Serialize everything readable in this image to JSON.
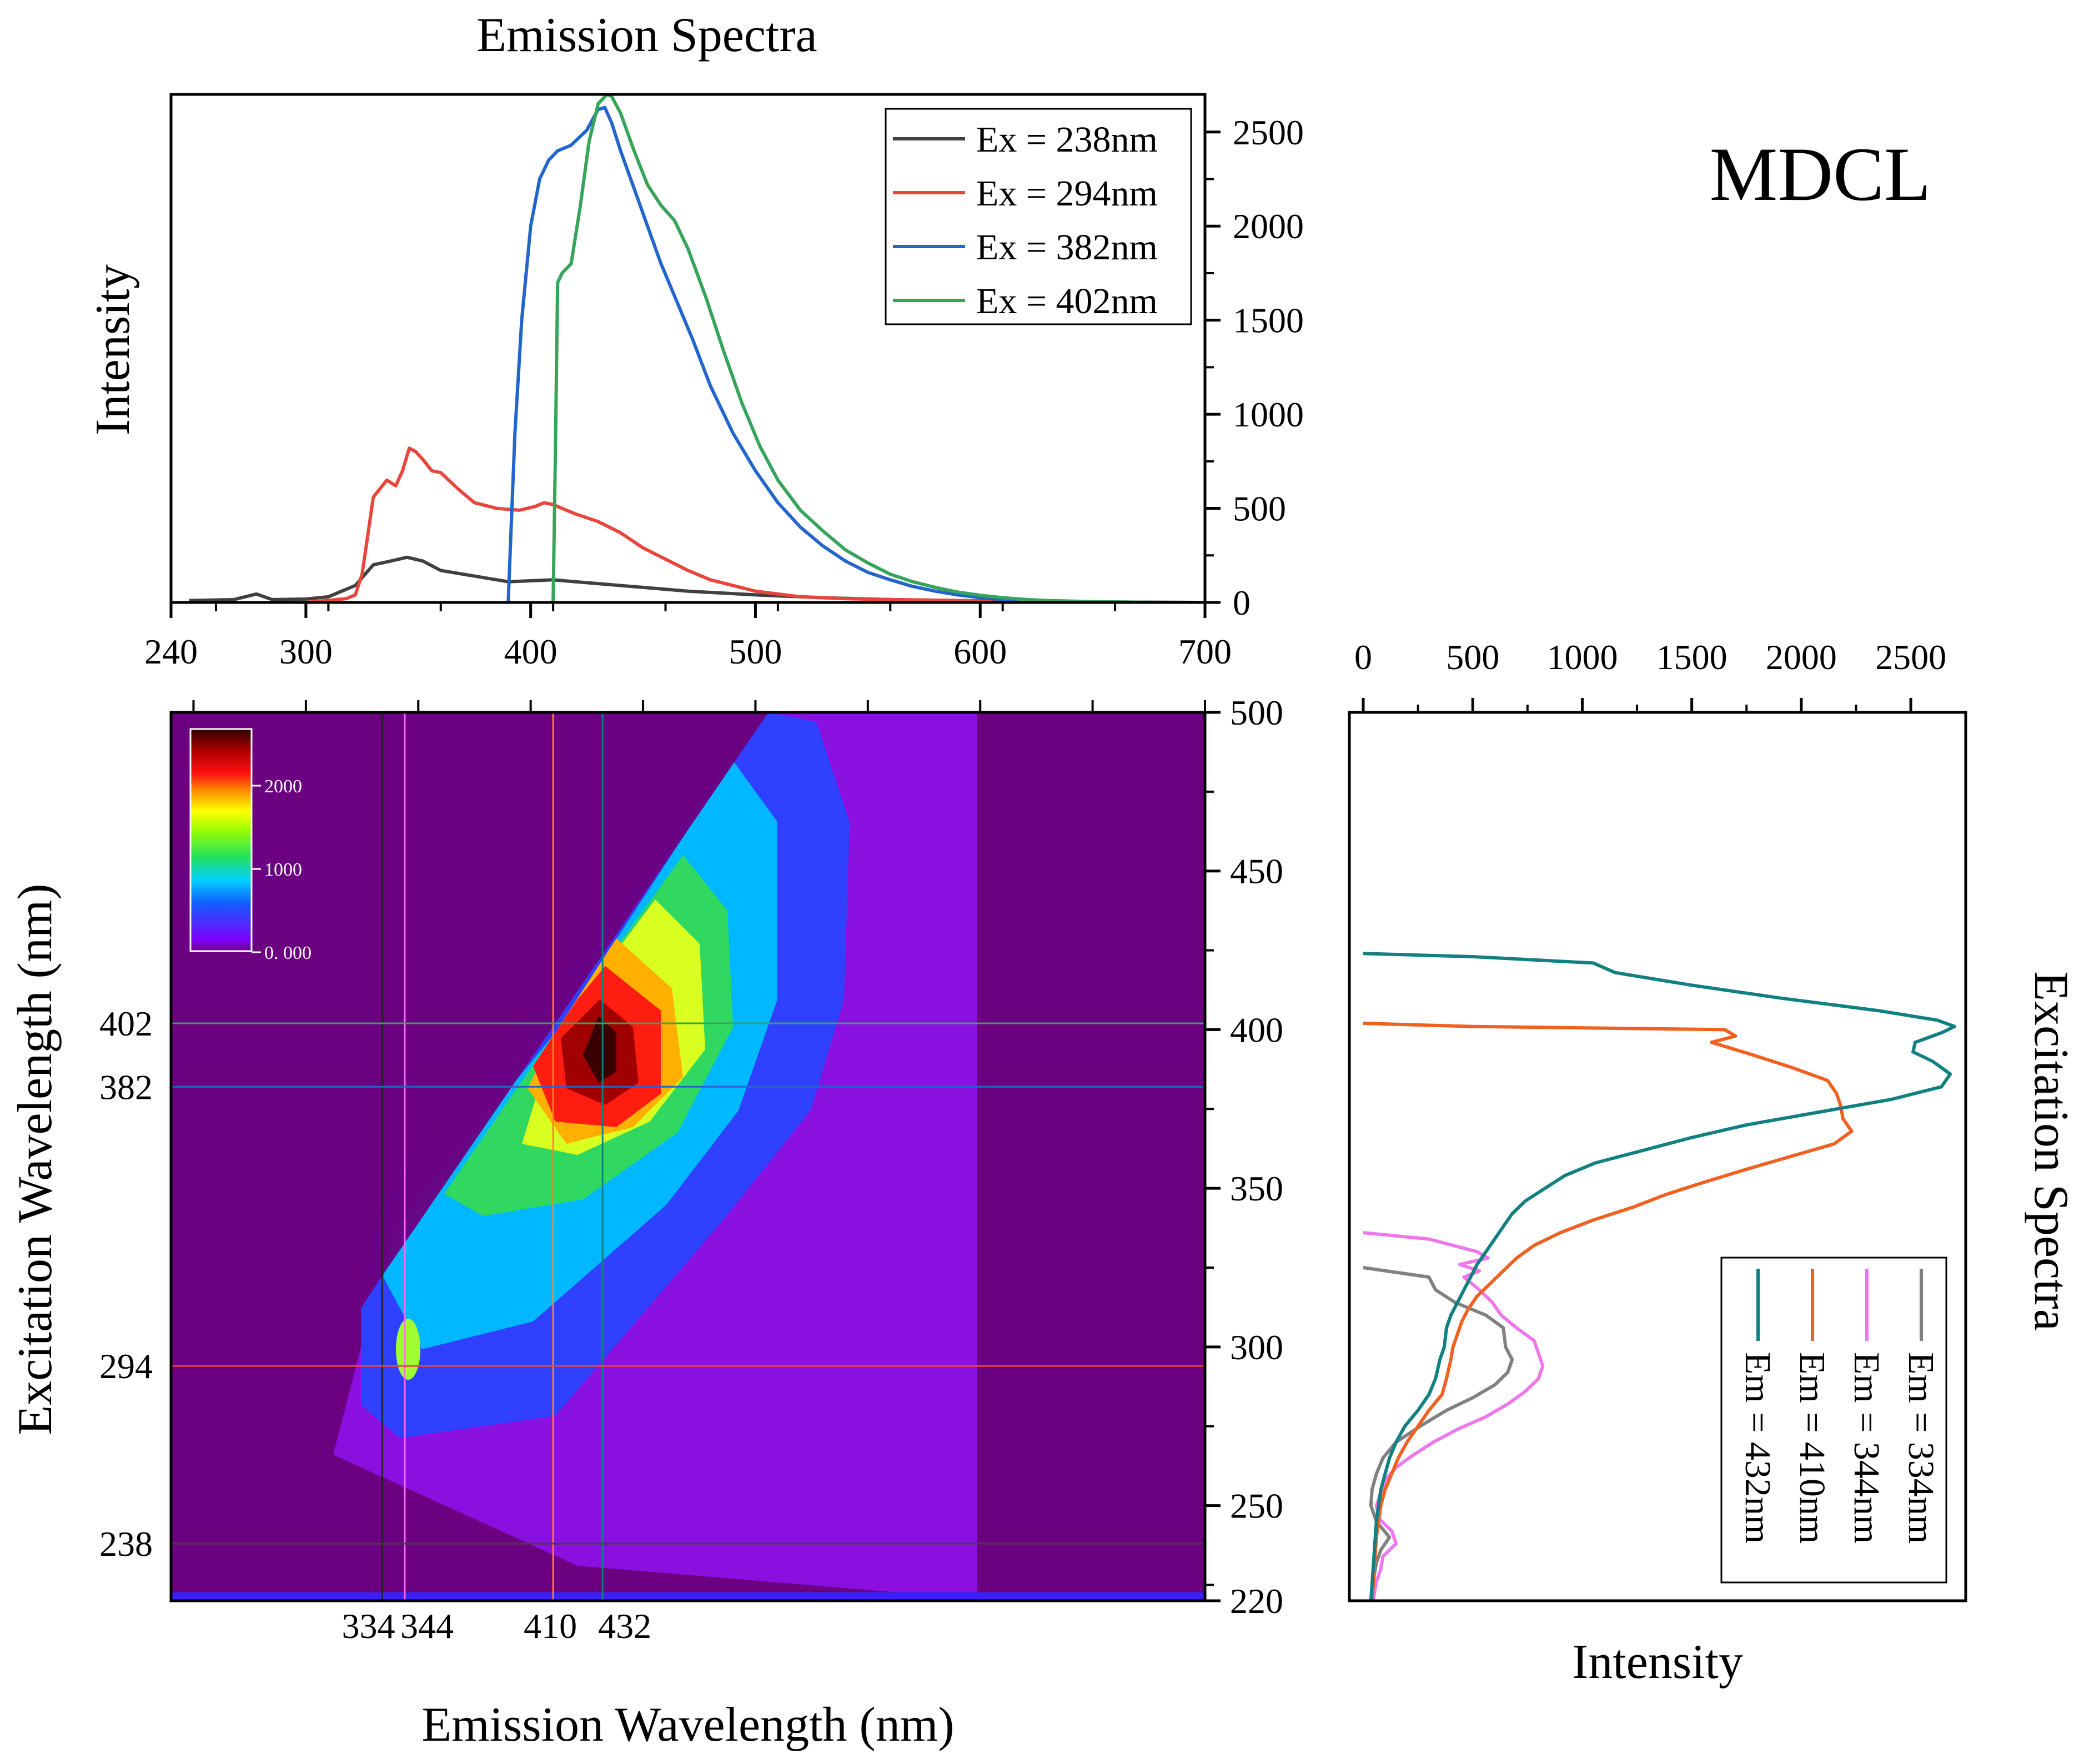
{
  "top_label": "MDCL",
  "chart_data": [
    {
      "type": "line",
      "panel": "emission",
      "title": "Emission Spectra",
      "xlabel": "",
      "ylabel": "Intensity",
      "xlim": [
        240,
        700
      ],
      "ylim": [
        0,
        2700
      ],
      "xticks": [
        240,
        300,
        400,
        500,
        600,
        700
      ],
      "yticks": [
        0,
        500,
        1000,
        1500,
        2000,
        2500
      ],
      "legend_position": "top-right",
      "series": [
        {
          "name": "Ex = 238nm",
          "color": "#404040",
          "x": [
            248,
            268,
            278,
            285,
            300,
            310,
            322,
            330,
            336,
            345,
            352,
            360,
            375,
            390,
            410,
            430,
            450,
            470,
            500,
            530,
            560,
            600,
            650,
            700
          ],
          "y": [
            10,
            15,
            45,
            15,
            18,
            30,
            90,
            200,
            215,
            240,
            220,
            170,
            140,
            110,
            120,
            100,
            80,
            60,
            40,
            25,
            15,
            8,
            3,
            0
          ]
        },
        {
          "name": "Ex = 294nm",
          "color": "#e8463c",
          "x": [
            300,
            318,
            322,
            325,
            330,
            336,
            340,
            343,
            346,
            349,
            352,
            356,
            360,
            368,
            375,
            385,
            395,
            402,
            406,
            410,
            414,
            420,
            430,
            440,
            450,
            460,
            470,
            480,
            500,
            520,
            540,
            560,
            580,
            600,
            620,
            650
          ],
          "y": [
            0,
            20,
            40,
            150,
            560,
            650,
            620,
            700,
            820,
            800,
            760,
            700,
            690,
            600,
            530,
            500,
            490,
            510,
            530,
            520,
            500,
            470,
            430,
            370,
            290,
            230,
            170,
            120,
            60,
            30,
            20,
            15,
            12,
            8,
            5,
            0
          ]
        },
        {
          "name": "Ex = 382nm",
          "color": "#2266cc",
          "x": [
            390,
            391,
            393,
            396,
            400,
            404,
            408,
            412,
            418,
            425,
            430,
            433,
            436,
            440,
            446,
            452,
            458,
            465,
            472,
            480,
            490,
            500,
            510,
            520,
            530,
            540,
            550,
            560,
            570,
            580,
            590,
            600,
            610,
            620,
            630,
            640
          ],
          "y": [
            0,
            300,
            900,
            1500,
            2000,
            2250,
            2350,
            2400,
            2430,
            2510,
            2620,
            2630,
            2550,
            2400,
            2200,
            2000,
            1800,
            1600,
            1400,
            1150,
            900,
            700,
            530,
            400,
            300,
            220,
            160,
            120,
            85,
            60,
            40,
            25,
            15,
            8,
            4,
            0
          ]
        },
        {
          "name": "Ex = 402nm",
          "color": "#36a45a",
          "x": [
            410,
            411,
            412,
            414,
            418,
            422,
            426,
            430,
            434,
            436,
            440,
            446,
            452,
            458,
            464,
            470,
            478,
            486,
            494,
            502,
            510,
            520,
            530,
            540,
            550,
            560,
            570,
            580,
            590,
            600,
            610,
            620,
            630,
            650,
            680
          ],
          "y": [
            0,
            800,
            1700,
            1750,
            1800,
            2100,
            2450,
            2650,
            2700,
            2690,
            2600,
            2400,
            2220,
            2110,
            2030,
            1880,
            1620,
            1330,
            1060,
            830,
            650,
            490,
            380,
            280,
            210,
            150,
            110,
            80,
            55,
            38,
            25,
            16,
            10,
            4,
            0
          ]
        }
      ]
    },
    {
      "type": "heatmap",
      "panel": "excitation-emission-map",
      "xlabel": "Emission Wavelength (nm)",
      "ylabel": "Excitation Wavelength (nm)",
      "xlim": [
        240,
        700
      ],
      "ylim": [
        220,
        500
      ],
      "colorbar": {
        "ticks": [
          "2000",
          "1000",
          "0. 000"
        ],
        "max": 2700
      },
      "peaks": [
        {
          "em": 432,
          "ex": 396,
          "intensity": 2700
        },
        {
          "em": 346,
          "ex": 298,
          "intensity": 900
        }
      ],
      "marker_em": [
        334,
        344,
        410,
        432
      ],
      "marker_ex": [
        238,
        294,
        382,
        402
      ],
      "marker_em_labels": [
        "334",
        "344",
        "410",
        "432"
      ],
      "marker_ex_labels": [
        "238",
        "294",
        "382",
        "402"
      ],
      "marker_em_colors": [
        "#222222",
        "#ff66ff",
        "#ff7f2a",
        "#108080"
      ],
      "marker_ex_colors": [
        "#404040",
        "#e8463c",
        "#2266cc",
        "#36a45a"
      ],
      "right_ticks": [
        220,
        250,
        300,
        350,
        400,
        450,
        500
      ]
    },
    {
      "type": "line",
      "panel": "excitation",
      "title": "Excitation Spectra",
      "xlabel": "Intensity",
      "ylabel": "",
      "xlim": [
        0,
        2700
      ],
      "ylim": [
        220,
        500
      ],
      "xticks": [
        0,
        500,
        1000,
        1500,
        2000,
        2500
      ],
      "legend_position": "bottom-right",
      "series": [
        {
          "name": "Em = 334nm",
          "color": "#808080",
          "ex": [
            325,
            322,
            318,
            314,
            310,
            306,
            300,
            296,
            292,
            288,
            284,
            280,
            275,
            270,
            265,
            260,
            255,
            250,
            245,
            240,
            236,
            232,
            228,
            224,
            220
          ],
          "intensity": [
            0,
            300,
            330,
            420,
            560,
            640,
            650,
            680,
            660,
            600,
            500,
            380,
            260,
            150,
            90,
            60,
            40,
            35,
            60,
            120,
            80,
            60,
            50,
            45,
            40
          ]
        },
        {
          "name": "Em = 344nm",
          "color": "#ee77ee",
          "ex": [
            336,
            334,
            330,
            328,
            326,
            324,
            322,
            318,
            314,
            310,
            306,
            302,
            298,
            294,
            290,
            286,
            282,
            278,
            274,
            270,
            266,
            262,
            258,
            254,
            250,
            246,
            242,
            238,
            234,
            230,
            226,
            222,
            220
          ],
          "intensity": [
            0,
            300,
            520,
            570,
            440,
            530,
            460,
            530,
            590,
            630,
            700,
            780,
            800,
            820,
            800,
            740,
            660,
            560,
            430,
            320,
            230,
            150,
            100,
            80,
            60,
            70,
            130,
            150,
            90,
            80,
            60,
            50,
            45
          ]
        },
        {
          "name": "Em = 410nm",
          "color": "#f06020",
          "ex": [
            402,
            401,
            400,
            398,
            396,
            392,
            388,
            384,
            380,
            376,
            372,
            368,
            364,
            360,
            356,
            352,
            348,
            344,
            340,
            336,
            332,
            328,
            324,
            320,
            316,
            312,
            308,
            304,
            300,
            296,
            290,
            285,
            280,
            275,
            270,
            265,
            260,
            255,
            250,
            245,
            240,
            235,
            230,
            225,
            220
          ],
          "intensity": [
            0,
            500,
            1650,
            1700,
            1590,
            1780,
            1960,
            2120,
            2160,
            2180,
            2190,
            2230,
            2150,
            1950,
            1750,
            1560,
            1380,
            1230,
            1050,
            900,
            780,
            700,
            640,
            580,
            520,
            480,
            450,
            430,
            410,
            400,
            380,
            360,
            300,
            250,
            200,
            160,
            130,
            100,
            80,
            70,
            60,
            55,
            50,
            45,
            40
          ]
        },
        {
          "name": "Em = 432nm",
          "color": "#108080",
          "ex": [
            424,
            423,
            421,
            418,
            414,
            410,
            406,
            403,
            401,
            399,
            396,
            393,
            390,
            386,
            382,
            378,
            374,
            370,
            366,
            362,
            358,
            354,
            350,
            346,
            342,
            338,
            334,
            330,
            326,
            322,
            318,
            314,
            310,
            306,
            300,
            296,
            290,
            285,
            280,
            275,
            270,
            265,
            260,
            255,
            250,
            245,
            240,
            235,
            230,
            225,
            220
          ],
          "intensity": [
            0,
            500,
            1050,
            1150,
            1500,
            1900,
            2350,
            2620,
            2700,
            2640,
            2520,
            2510,
            2600,
            2680,
            2640,
            2410,
            2080,
            1750,
            1500,
            1280,
            1060,
            920,
            830,
            740,
            680,
            640,
            600,
            560,
            520,
            490,
            460,
            430,
            400,
            380,
            370,
            350,
            330,
            300,
            250,
            190,
            150,
            120,
            100,
            80,
            70,
            60,
            55,
            50,
            45,
            40,
            35
          ]
        }
      ]
    }
  ]
}
